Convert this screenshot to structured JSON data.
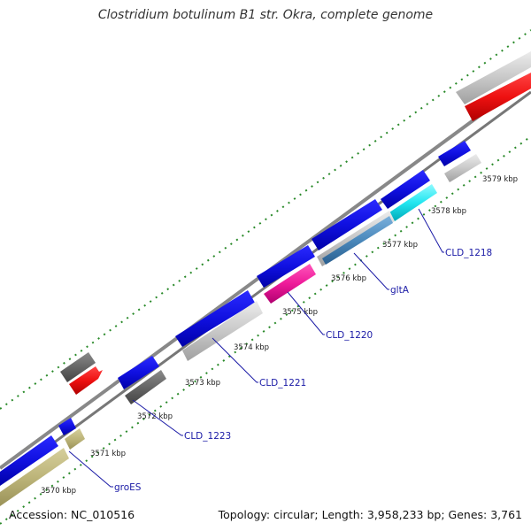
{
  "title": "Clostridium botulinum B1 str. Okra, complete genome",
  "footer": {
    "accession": "Accession: NC_010516",
    "topology": "Topology: circular; Length: 3,958,233 bp; Genes: 3,761"
  },
  "ticks": [
    "3570 kbp",
    "3571 kbp",
    "3572 kbp",
    "3573 kbp",
    "3574 kbp",
    "3575 kbp",
    "3576 kbp",
    "3577 kbp",
    "3578 kbp",
    "3579 kbp"
  ],
  "gene_labels": [
    "groES",
    "CLD_1223",
    "CLD_1221",
    "CLD_1220",
    "gltA",
    "CLD_1218"
  ],
  "colors": {
    "cds": "#1010e0",
    "grey_feature": "#c8c8c8",
    "dark_grey_feature": "#666666",
    "red_feature": "#ee1111",
    "olive_feature": "#bdb57a",
    "magenta_feature": "#ee1a99",
    "steel_feature": "#4a88bb",
    "cyan_feature": "#22e6f0",
    "backbone": "#888888",
    "tick_green": "#2a8a2a"
  }
}
